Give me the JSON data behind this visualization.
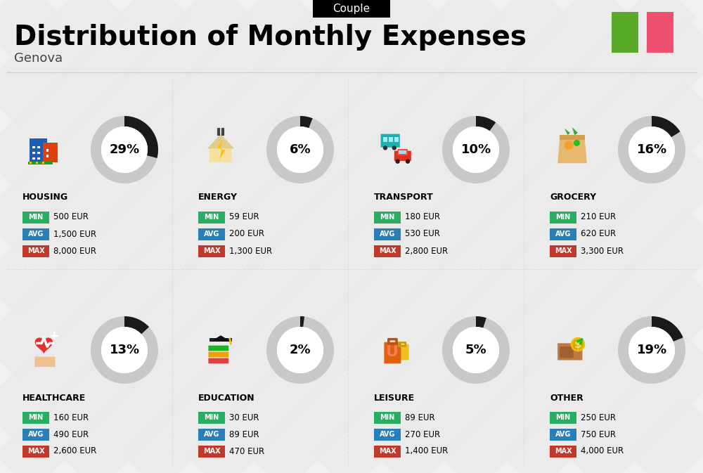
{
  "title": "Distribution of Monthly Expenses",
  "subtitle": "Genova",
  "badge": "Couple",
  "bg_color": "#f0f0f0",
  "categories": [
    {
      "name": "HOUSING",
      "pct": 29,
      "min_val": "500 EUR",
      "avg_val": "1,500 EUR",
      "max_val": "8,000 EUR",
      "row": 0,
      "col": 0
    },
    {
      "name": "ENERGY",
      "pct": 6,
      "min_val": "59 EUR",
      "avg_val": "200 EUR",
      "max_val": "1,300 EUR",
      "row": 0,
      "col": 1
    },
    {
      "name": "TRANSPORT",
      "pct": 10,
      "min_val": "180 EUR",
      "avg_val": "530 EUR",
      "max_val": "2,800 EUR",
      "row": 0,
      "col": 2
    },
    {
      "name": "GROCERY",
      "pct": 16,
      "min_val": "210 EUR",
      "avg_val": "620 EUR",
      "max_val": "3,300 EUR",
      "row": 0,
      "col": 3
    },
    {
      "name": "HEALTHCARE",
      "pct": 13,
      "min_val": "160 EUR",
      "avg_val": "490 EUR",
      "max_val": "2,600 EUR",
      "row": 1,
      "col": 0
    },
    {
      "name": "EDUCATION",
      "pct": 2,
      "min_val": "30 EUR",
      "avg_val": "89 EUR",
      "max_val": "470 EUR",
      "row": 1,
      "col": 1
    },
    {
      "name": "LEISURE",
      "pct": 5,
      "min_val": "89 EUR",
      "avg_val": "270 EUR",
      "max_val": "1,400 EUR",
      "row": 1,
      "col": 2
    },
    {
      "name": "OTHER",
      "pct": 19,
      "min_val": "250 EUR",
      "avg_val": "750 EUR",
      "max_val": "4,000 EUR",
      "row": 1,
      "col": 3
    }
  ],
  "min_color": "#27ae60",
  "avg_color": "#2980b9",
  "max_color": "#c0392b",
  "italy_green": "#5aaa2a",
  "italy_red": "#f05070"
}
